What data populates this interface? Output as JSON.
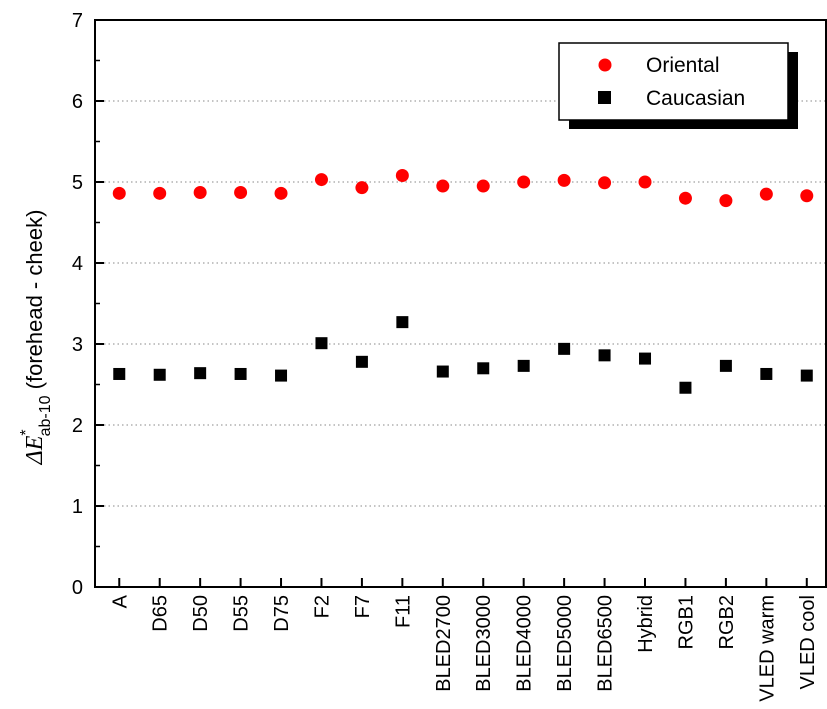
{
  "chart_data": {
    "type": "scatter",
    "categories": [
      "A",
      "D65",
      "D50",
      "D55",
      "D75",
      "F2",
      "F7",
      "F11",
      "BLED2700",
      "BLED3000",
      "BLED4000",
      "BLED5000",
      "BLED6500",
      "Hybrid",
      "RGB1",
      "RGB2",
      "VLED warm",
      "VLED cool"
    ],
    "series": [
      {
        "name": "Oriental",
        "marker": "circle",
        "color": "#ff0000",
        "values": [
          4.86,
          4.86,
          4.87,
          4.87,
          4.86,
          5.03,
          4.93,
          5.08,
          4.95,
          4.95,
          5.0,
          5.02,
          4.99,
          5.0,
          4.8,
          4.77,
          4.85,
          4.83
        ]
      },
      {
        "name": "Caucasian",
        "marker": "square",
        "color": "#000000",
        "values": [
          2.63,
          2.62,
          2.64,
          2.63,
          2.61,
          3.01,
          2.78,
          3.27,
          2.66,
          2.7,
          2.73,
          2.94,
          2.86,
          2.82,
          2.46,
          2.73,
          2.63,
          2.61
        ]
      }
    ],
    "ylabel": {
      "symbol_delta": "Δ",
      "symbol_E": "E",
      "superscript": "*",
      "subscript": "ab-10",
      "text": " (forehead - cheek)"
    },
    "ylim": [
      0,
      7
    ],
    "yticks": [
      0,
      1,
      2,
      3,
      4,
      5,
      6,
      7
    ],
    "grid": {
      "y_major": true,
      "style": "dotted"
    },
    "legend": {
      "placement": "top-right",
      "shadow": true
    }
  }
}
